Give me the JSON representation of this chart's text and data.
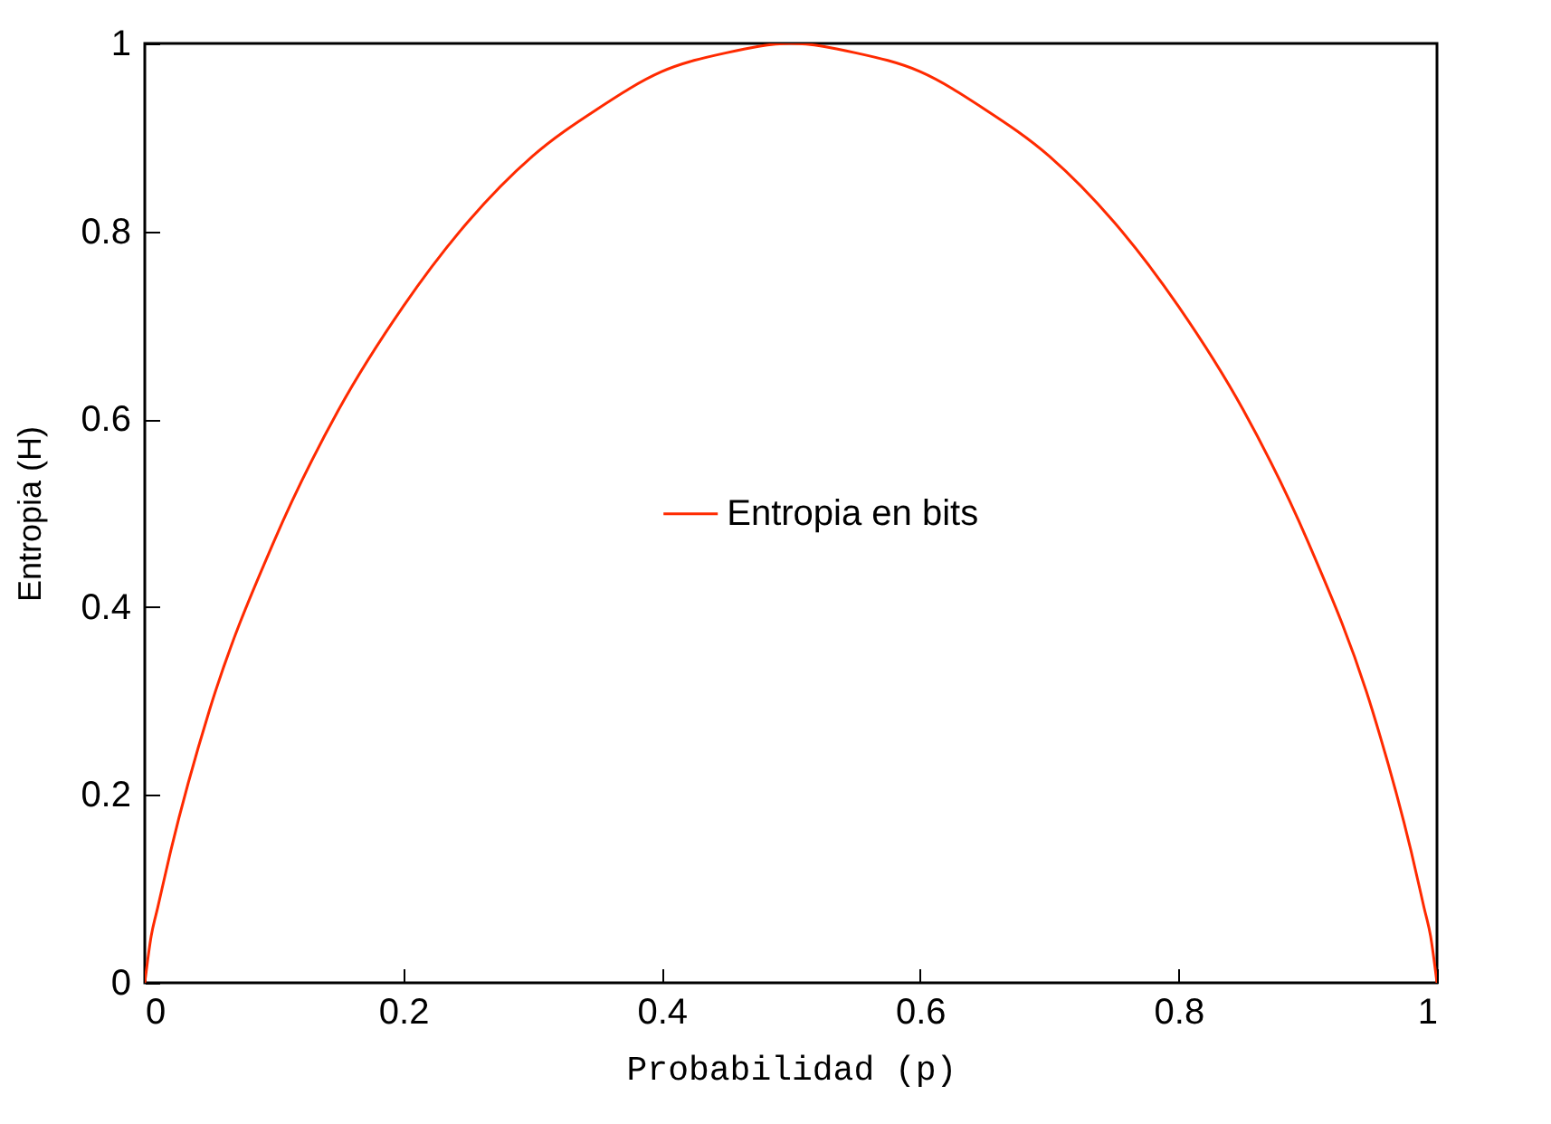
{
  "chart_data": {
    "type": "line",
    "xlabel": "Probabilidad (p)",
    "ylabel": "Entropia (H)",
    "x": [
      0,
      0.005,
      0.01,
      0.02,
      0.05,
      0.1,
      0.15,
      0.2,
      0.25,
      0.3,
      0.35,
      0.4,
      0.45,
      0.5,
      0.55,
      0.6,
      0.65,
      0.7,
      0.75,
      0.8,
      0.85,
      0.9,
      0.95,
      0.98,
      0.99,
      0.995,
      1
    ],
    "series": [
      {
        "name": "Entropia en bits",
        "color": "#ff2a00",
        "values": [
          0,
          0.05,
          0.08,
          0.14,
          0.29,
          0.47,
          0.61,
          0.72,
          0.81,
          0.88,
          0.93,
          0.97,
          0.99,
          1,
          0.99,
          0.97,
          0.93,
          0.88,
          0.81,
          0.72,
          0.61,
          0.47,
          0.29,
          0.14,
          0.08,
          0.05,
          0
        ]
      }
    ],
    "xlim": [
      0,
      1
    ],
    "ylim": [
      0,
      1
    ],
    "xticks": [
      0,
      0.2,
      0.4,
      0.6,
      0.8,
      1
    ],
    "yticks": [
      0,
      0.2,
      0.4,
      0.6,
      0.8,
      1
    ],
    "legend": "right",
    "grid": false
  }
}
